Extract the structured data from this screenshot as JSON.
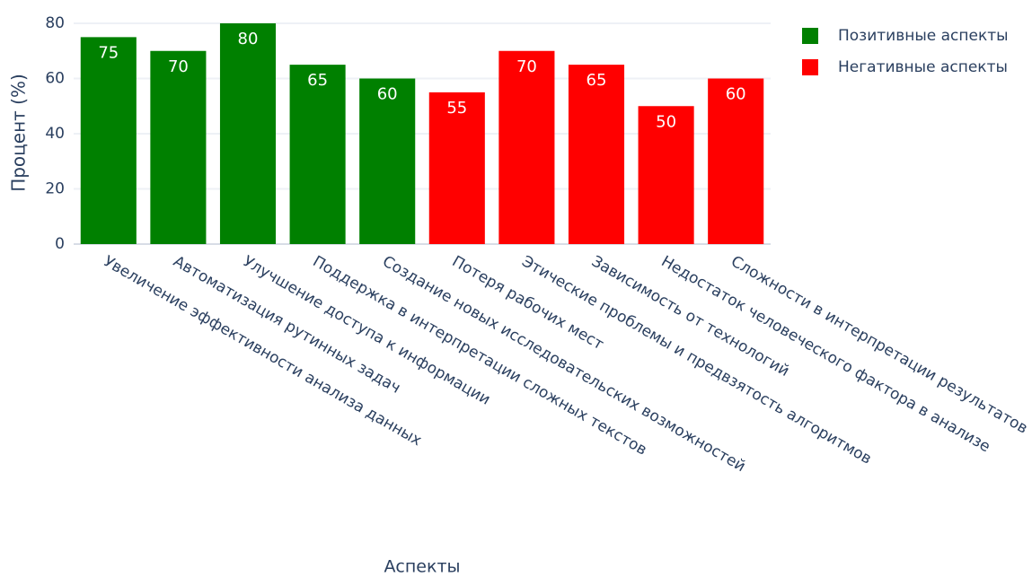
{
  "chart_data": {
    "type": "bar",
    "categories": [
      "Увеличение эффективности анализа данных",
      "Автоматизация рутинных задач",
      "Улучшение доступа к информации",
      "Поддержка в интерпретации сложных текстов",
      "Создание новых исследовательских возможностей",
      "Потеря рабочих мест",
      "Этические проблемы и предвзятость алгоритмов",
      "Зависимость от технологий",
      "Недостаток человеческого фактора в анализе",
      "Сложности в интерпретации результатов"
    ],
    "series": [
      {
        "name": "Позитивные аспекты",
        "color": "#008000",
        "values": [
          75,
          70,
          80,
          65,
          60,
          null,
          null,
          null,
          null,
          null
        ]
      },
      {
        "name": "Негативные аспекты",
        "color": "#ff0000",
        "values": [
          null,
          null,
          null,
          null,
          null,
          55,
          70,
          65,
          50,
          60
        ]
      }
    ],
    "xlabel": "Аспекты",
    "ylabel": "Процент (%)",
    "ylim": [
      0,
      80
    ],
    "yticks": [
      0,
      20,
      40,
      60,
      80
    ],
    "grid": true,
    "legend": "top-right"
  }
}
